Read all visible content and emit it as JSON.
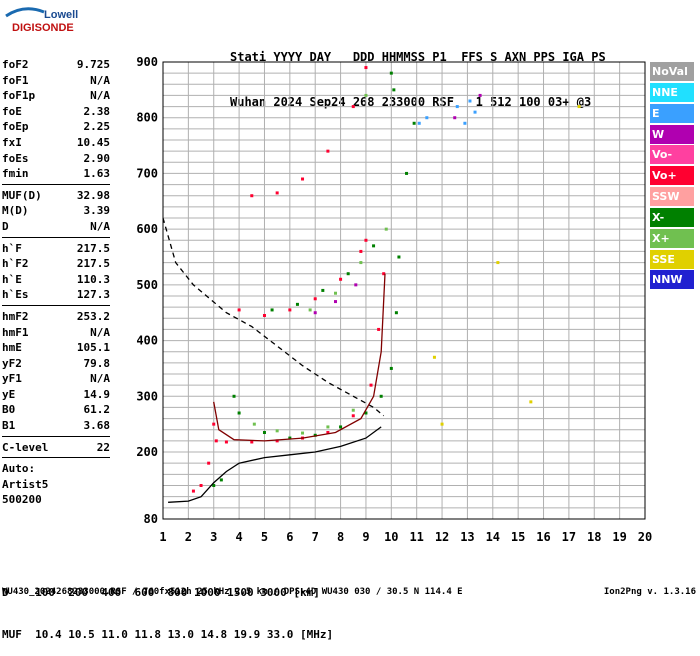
{
  "logo": {
    "line1": "Lowell",
    "line2": "DIGISONDE"
  },
  "header": {
    "labels": "Stati YYYY DAY   DDD HHMMSS P1  FFS S AXN PPS IGA PS",
    "values": "Wuhan 2024 Sep24 268 233000 RSF   1 512 100 03+ @3"
  },
  "params": [
    {
      "name": "foF2",
      "value": "9.725"
    },
    {
      "name": "foF1",
      "value": "N/A"
    },
    {
      "name": "foF1p",
      "value": "N/A"
    },
    {
      "name": "foE",
      "value": "2.38"
    },
    {
      "name": "foEp",
      "value": "2.25"
    },
    {
      "name": "fxI",
      "value": "10.45"
    },
    {
      "name": "foEs",
      "value": "2.90"
    },
    {
      "name": "fmin",
      "value": "1.63"
    },
    {
      "name": "MUF(D)",
      "value": "32.98",
      "sep": true
    },
    {
      "name": "M(D)",
      "value": "3.39"
    },
    {
      "name": "D",
      "value": "N/A"
    },
    {
      "name": "h`F",
      "value": "217.5",
      "sep": true
    },
    {
      "name": "h`F2",
      "value": "217.5"
    },
    {
      "name": "h`E",
      "value": "110.3"
    },
    {
      "name": "h`Es",
      "value": "127.3"
    },
    {
      "name": "hmF2",
      "value": "253.2",
      "sep": true
    },
    {
      "name": "hmF1",
      "value": "N/A"
    },
    {
      "name": "hmE",
      "value": "105.1"
    },
    {
      "name": "yF2",
      "value": "79.8"
    },
    {
      "name": "yF1",
      "value": "N/A"
    },
    {
      "name": "yE",
      "value": "14.9"
    },
    {
      "name": "B0",
      "value": "61.2"
    },
    {
      "name": "B1",
      "value": "3.68"
    },
    {
      "name": "C-level",
      "value": "22",
      "sep": true
    },
    {
      "name": "Auto:",
      "value": "",
      "sep": true
    },
    {
      "name": "Artist5",
      "value": ""
    },
    {
      "name": "500200",
      "value": ""
    }
  ],
  "legend": [
    {
      "label": "NoVal",
      "color": "#a0a0a0"
    },
    {
      "label": "NNE",
      "color": "#20e0ff"
    },
    {
      "label": "E",
      "color": "#3aa0ff"
    },
    {
      "label": "W",
      "color": "#b000b0"
    },
    {
      "label": "Vo-",
      "color": "#ff40a0"
    },
    {
      "label": "Vo+",
      "color": "#ff0030"
    },
    {
      "label": "SSW",
      "color": "#ffa0a0"
    },
    {
      "label": "X-",
      "color": "#008000"
    },
    {
      "label": "X+",
      "color": "#70c050"
    },
    {
      "label": "SSE",
      "color": "#e0d000"
    },
    {
      "label": "NNW",
      "color": "#2020d0"
    }
  ],
  "chart_data": {
    "type": "scatter",
    "x_ticks": [
      "1",
      "2",
      "3",
      "4",
      "5",
      "6",
      "7",
      "8",
      "9",
      "10",
      "11",
      "12",
      "13",
      "14",
      "15",
      "16",
      "17",
      "18",
      "19",
      "20"
    ],
    "y_ticks": [
      "80",
      "200",
      "300",
      "400",
      "500",
      "600",
      "700",
      "800",
      "900"
    ],
    "xlim": [
      1,
      20
    ],
    "ylim": [
      80,
      900
    ],
    "grid": true,
    "legend_position": "right",
    "series": [
      {
        "name": "Vo+",
        "color": "#ff0030",
        "points": [
          [
            2.2,
            130
          ],
          [
            2.5,
            140
          ],
          [
            2.8,
            180
          ],
          [
            3.0,
            250
          ],
          [
            3.1,
            220
          ],
          [
            3.5,
            218
          ],
          [
            4.5,
            218
          ],
          [
            5.5,
            220
          ],
          [
            6.5,
            225
          ],
          [
            7.5,
            235
          ],
          [
            8.5,
            265
          ],
          [
            9.2,
            320
          ],
          [
            9.5,
            420
          ],
          [
            9.7,
            520
          ],
          [
            4.0,
            455
          ],
          [
            5.0,
            445
          ],
          [
            6.0,
            455
          ],
          [
            7.0,
            475
          ],
          [
            8.0,
            510
          ],
          [
            8.8,
            560
          ],
          [
            9.0,
            580
          ],
          [
            4.5,
            660
          ],
          [
            5.5,
            665
          ],
          [
            6.5,
            690
          ],
          [
            7.5,
            740
          ],
          [
            8.5,
            820
          ],
          [
            9.0,
            890
          ]
        ]
      },
      {
        "name": "X-",
        "color": "#008000",
        "points": [
          [
            3.8,
            300
          ],
          [
            4.0,
            270
          ],
          [
            5.0,
            235
          ],
          [
            6.0,
            225
          ],
          [
            7.0,
            230
          ],
          [
            8.0,
            245
          ],
          [
            9.0,
            270
          ],
          [
            9.6,
            300
          ],
          [
            10.0,
            350
          ],
          [
            10.2,
            450
          ],
          [
            10.3,
            550
          ],
          [
            10.6,
            700
          ],
          [
            10.9,
            790
          ],
          [
            10.1,
            850
          ],
          [
            10.0,
            880
          ],
          [
            3.0,
            140
          ],
          [
            3.3,
            150
          ],
          [
            5.3,
            455
          ],
          [
            6.3,
            465
          ],
          [
            7.3,
            490
          ],
          [
            8.3,
            520
          ],
          [
            9.3,
            570
          ]
        ]
      },
      {
        "name": "X+",
        "color": "#70c050",
        "points": [
          [
            4.6,
            250
          ],
          [
            5.5,
            238
          ],
          [
            6.5,
            234
          ],
          [
            7.5,
            245
          ],
          [
            8.5,
            275
          ],
          [
            6.8,
            455
          ],
          [
            7.8,
            485
          ],
          [
            8.8,
            540
          ],
          [
            9.8,
            600
          ],
          [
            9.0,
            840
          ]
        ]
      },
      {
        "name": "E",
        "color": "#3aa0ff",
        "points": [
          [
            11.1,
            790
          ],
          [
            11.4,
            800
          ],
          [
            12.6,
            820
          ],
          [
            13.1,
            830
          ],
          [
            12.9,
            790
          ],
          [
            13.3,
            810
          ]
        ]
      },
      {
        "name": "W",
        "color": "#b000b0",
        "points": [
          [
            7.0,
            450
          ],
          [
            7.8,
            470
          ],
          [
            8.6,
            500
          ],
          [
            12.5,
            800
          ],
          [
            13.5,
            840
          ]
        ]
      },
      {
        "name": "SSE",
        "color": "#e0d000",
        "points": [
          [
            11.7,
            370
          ],
          [
            12.0,
            250
          ],
          [
            14.2,
            540
          ],
          [
            15.5,
            290
          ],
          [
            17.4,
            820
          ]
        ]
      }
    ],
    "curves": [
      {
        "label": "Profile",
        "color": "#000000",
        "style": "dashed",
        "points": [
          [
            1.0,
            620
          ],
          [
            1.5,
            540
          ],
          [
            2.2,
            500
          ],
          [
            3.5,
            450
          ],
          [
            4.5,
            425
          ],
          [
            5.5,
            390
          ],
          [
            6.5,
            355
          ],
          [
            7.5,
            325
          ],
          [
            8.5,
            300
          ],
          [
            9.3,
            280
          ],
          [
            9.7,
            265
          ]
        ]
      },
      {
        "label": "O-trace",
        "color": "#000000",
        "style": "solid",
        "points": [
          [
            1.2,
            110
          ],
          [
            2.0,
            112
          ],
          [
            2.5,
            120
          ],
          [
            3.0,
            145
          ],
          [
            3.5,
            165
          ],
          [
            4.0,
            180
          ],
          [
            5.0,
            190
          ],
          [
            6.0,
            195
          ],
          [
            7.0,
            200
          ],
          [
            8.0,
            210
          ],
          [
            9.0,
            225
          ],
          [
            9.6,
            245
          ]
        ]
      },
      {
        "label": "F-trace",
        "color": "#800000",
        "style": "solid",
        "points": [
          [
            3.0,
            290
          ],
          [
            3.2,
            240
          ],
          [
            3.8,
            222
          ],
          [
            5.0,
            220
          ],
          [
            6.5,
            225
          ],
          [
            7.8,
            235
          ],
          [
            8.8,
            260
          ],
          [
            9.3,
            300
          ],
          [
            9.6,
            380
          ],
          [
            9.75,
            520
          ]
        ]
      }
    ]
  },
  "footer": {
    "d_line": "D    100  200  400  600  800 1000 1500 3000 [km]",
    "muf_line": "MUF  10.4 10.5 11.0 11.8 13.0 14.8 19.9 33.0 [MHz]",
    "file_line": "WU430_2024268233000.RSF / 760fx512h 25 kHz 2.5 km / DPS-4D WU430 030 / 30.5 N 114.4 E",
    "version": "Ion2Png v. 1.3.16"
  }
}
